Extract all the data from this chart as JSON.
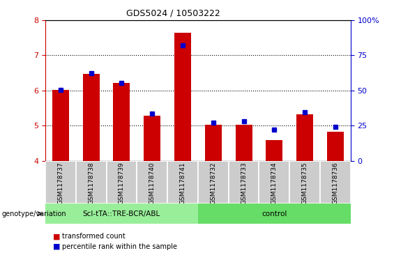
{
  "title": "GDS5024 / 10503222",
  "samples": [
    "GSM1178737",
    "GSM1178738",
    "GSM1178739",
    "GSM1178740",
    "GSM1178741",
    "GSM1178732",
    "GSM1178733",
    "GSM1178734",
    "GSM1178735",
    "GSM1178736"
  ],
  "red_values": [
    6.02,
    6.48,
    6.22,
    5.28,
    7.65,
    5.02,
    5.03,
    4.58,
    5.32,
    4.82
  ],
  "blue_values": [
    6.02,
    6.5,
    6.22,
    5.35,
    7.28,
    5.08,
    5.12,
    4.88,
    5.38,
    4.97
  ],
  "ylim": [
    4.0,
    8.0
  ],
  "yticks_left": [
    4,
    5,
    6,
    7,
    8
  ],
  "yticks_right": [
    0,
    25,
    50,
    75,
    100
  ],
  "red_color": "#cc0000",
  "blue_color": "#0000cc",
  "group1_label": "Scl-tTA::TRE-BCR/ABL",
  "group2_label": "control",
  "group1_indices": [
    0,
    1,
    2,
    3,
    4
  ],
  "group2_indices": [
    5,
    6,
    7,
    8,
    9
  ],
  "group1_color": "#99ee99",
  "group2_color": "#66dd66",
  "tick_bg_color": "#cccccc",
  "legend_red": "transformed count",
  "legend_blue": "percentile rank within the sample",
  "ylabel_left_color": "#cc0000",
  "ylabel_right_color": "#0000cc"
}
